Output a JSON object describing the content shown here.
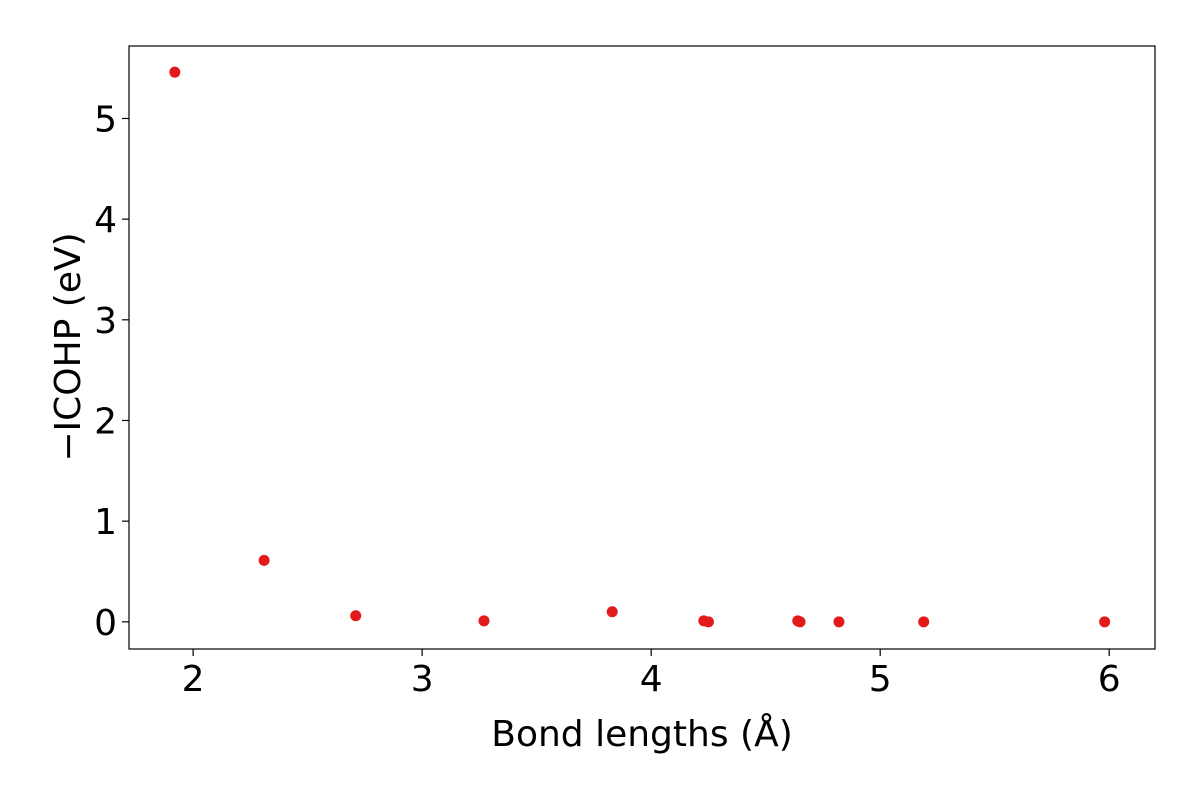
{
  "chart_data": {
    "type": "scatter",
    "title": "",
    "xlabel": "Bond lengths (Å)",
    "ylabel": "−ICOHP (eV)",
    "xlim": [
      1.72,
      6.2
    ],
    "ylim": [
      -0.27,
      5.72
    ],
    "xticks": [
      2,
      3,
      4,
      5,
      6
    ],
    "yticks": [
      0,
      1,
      2,
      3,
      4,
      5
    ],
    "grid": false,
    "marker_color": "#e31a1c",
    "series": [
      {
        "x": [
          1.92,
          2.31,
          2.71,
          3.27,
          3.83,
          4.23,
          4.25,
          4.64,
          4.65,
          4.82,
          5.19,
          5.98
        ],
        "y": [
          5.46,
          0.61,
          0.06,
          0.01,
          0.1,
          0.01,
          0.0,
          0.01,
          0.0,
          0.0,
          0.0,
          0.0
        ]
      }
    ]
  }
}
